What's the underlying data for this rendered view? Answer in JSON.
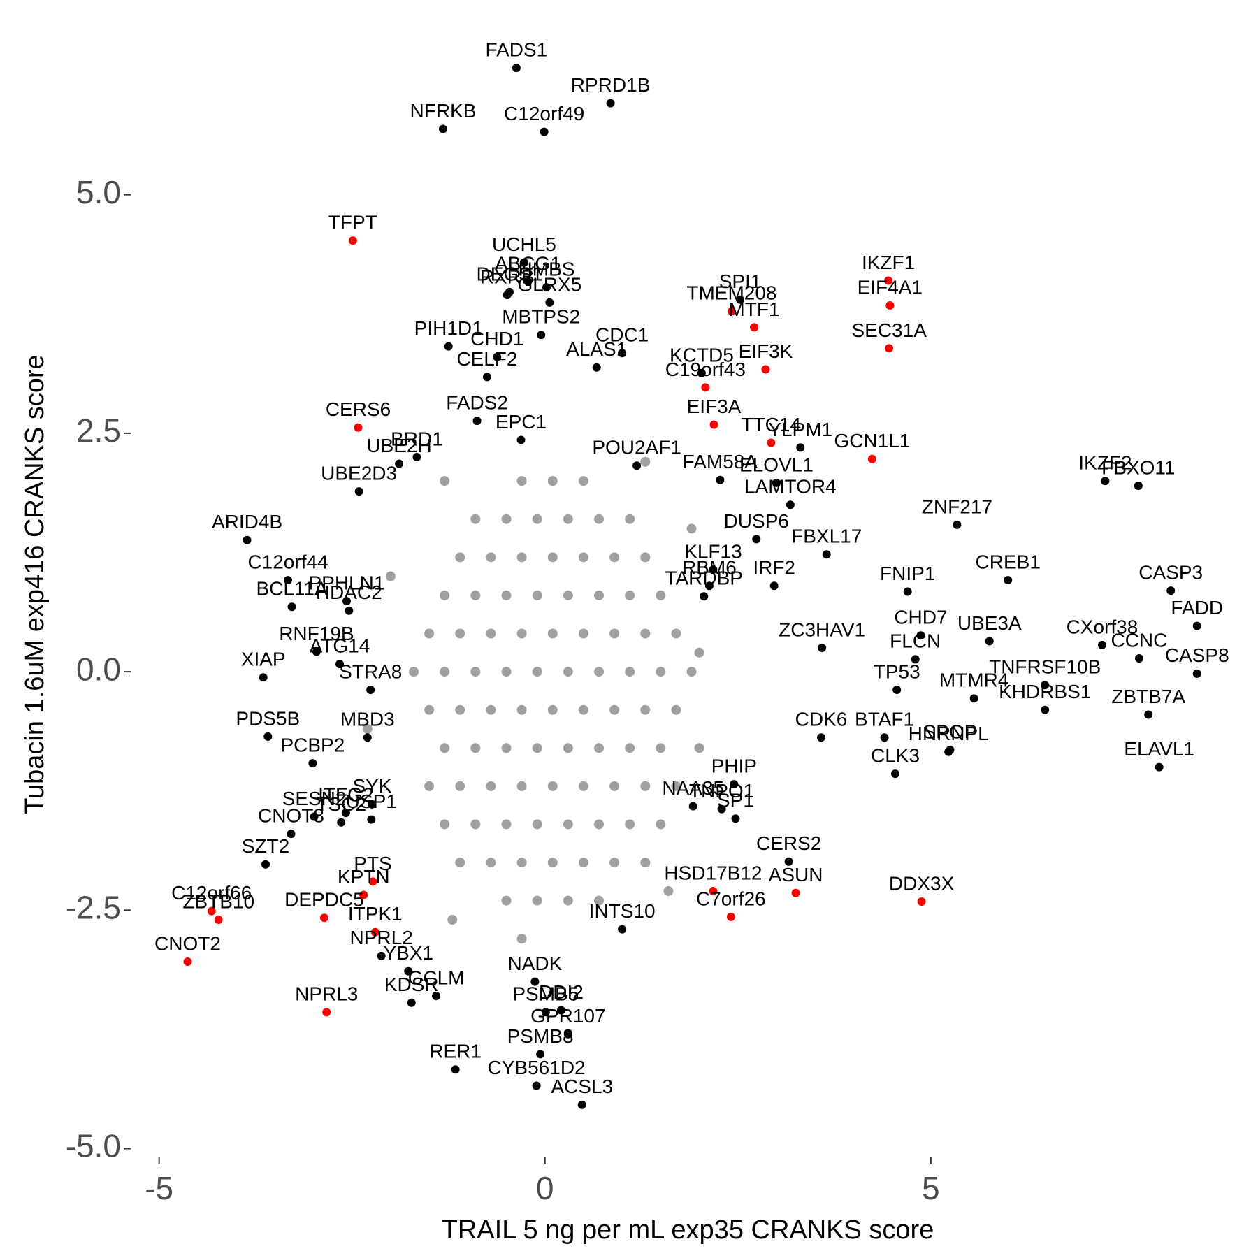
{
  "chart_data": {
    "type": "scatter",
    "xlabel": "TRAIL 5 ng per mL exp35 CRANKS score",
    "ylabel": "Tubacin 1.6uM exp416 CRANKS score",
    "xlim": [
      -5.35,
      9.05
    ],
    "ylim": [
      -5.15,
      6.8
    ],
    "xticks": [
      -5,
      0,
      5
    ],
    "yticks": [
      {
        "value": -5,
        "label": "-5.0"
      },
      {
        "value": -2.5,
        "label": "-2.5"
      },
      {
        "value": 0,
        "label": "0.0"
      },
      {
        "value": 2.5,
        "label": "2.5"
      },
      {
        "value": 5,
        "label": "5.0"
      }
    ],
    "series": [
      {
        "color": "#a0a0a0",
        "x": [
          -0.3,
          0.1,
          0.5,
          -0.9,
          -0.5,
          -0.1,
          0.3,
          0.7,
          1.1,
          -1.1,
          -0.7,
          -0.3,
          0.1,
          0.5,
          0.9,
          1.3,
          -1.3,
          -0.9,
          -0.5,
          -0.1,
          0.3,
          0.7,
          1.1,
          1.5,
          -1.5,
          -1.1,
          -0.7,
          -0.3,
          0.1,
          0.5,
          0.9,
          1.3,
          1.7,
          -1.7,
          -1.3,
          -0.9,
          -0.5,
          -0.1,
          0.3,
          0.7,
          1.1,
          1.5,
          1.9,
          -1.5,
          -1.1,
          -0.7,
          -0.3,
          0.1,
          0.5,
          0.9,
          1.3,
          1.7,
          -1.3,
          -0.9,
          -0.5,
          -0.1,
          0.3,
          0.7,
          1.1,
          1.5,
          -1.5,
          -1.1,
          -0.7,
          -0.3,
          0.1,
          0.5,
          0.9,
          1.3,
          1.7,
          -1.3,
          -0.9,
          -0.5,
          -0.1,
          0.3,
          0.7,
          1.1,
          1.5,
          -1.1,
          -0.7,
          -0.3,
          0.1,
          0.5,
          0.9,
          1.3,
          -0.5,
          -0.1,
          0.3,
          0.7,
          -2.3,
          2.0,
          1.9,
          -1.3,
          1.6,
          -1.2,
          -0.3,
          2.0,
          -2.0,
          1.3
        ],
        "y": [
          2.0,
          2.0,
          2.0,
          1.6,
          1.6,
          1.6,
          1.6,
          1.6,
          1.6,
          1.2,
          1.2,
          1.2,
          1.2,
          1.2,
          1.2,
          1.2,
          0.8,
          0.8,
          0.8,
          0.8,
          0.8,
          0.8,
          0.8,
          0.8,
          0.4,
          0.4,
          0.4,
          0.4,
          0.4,
          0.4,
          0.4,
          0.4,
          0.4,
          0.0,
          0.0,
          0.0,
          0.0,
          0.0,
          0.0,
          0.0,
          0.0,
          0.0,
          0.0,
          -0.4,
          -0.4,
          -0.4,
          -0.4,
          -0.4,
          -0.4,
          -0.4,
          -0.4,
          -0.4,
          -0.8,
          -0.8,
          -0.8,
          -0.8,
          -0.8,
          -0.8,
          -0.8,
          -0.8,
          -1.2,
          -1.2,
          -1.2,
          -1.2,
          -1.2,
          -1.2,
          -1.2,
          -1.2,
          -1.2,
          -1.6,
          -1.6,
          -1.6,
          -1.6,
          -1.6,
          -1.6,
          -1.6,
          -1.6,
          -2.0,
          -2.0,
          -2.0,
          -2.0,
          -2.0,
          -2.0,
          -2.0,
          -2.4,
          -2.4,
          -2.4,
          -2.4,
          -0.6,
          0.2,
          1.5,
          2.0,
          -2.3,
          -2.6,
          -2.8,
          -0.8,
          1.0,
          2.2
        ]
      },
      {
        "color": "#000000",
        "labels": [
          "FADS1",
          "RPRD1B",
          "NFRKB",
          "C12orf49",
          "UCHL5",
          "ABCG1",
          "DEGS1",
          "HMBS",
          "RXRB",
          "GLRX5",
          "MBTPS2",
          "CDC1",
          "PIH1D1",
          "CHD1",
          "ALAS1",
          "CELF2",
          "FADS2",
          "KCTD5",
          "SPI1",
          "EPC1",
          "BRD1",
          "UBE2H",
          "UBE2D3",
          "POU2AF1",
          "FAM58A",
          "ELOVL1",
          "YLPM1",
          "ARID4B",
          "C12orf44",
          "BCL11A",
          "PPHLN1",
          "HDAC2",
          "DUSP6",
          "LAMTOR4",
          "FBXL17",
          "ZNF217",
          "IKZF2",
          "FBXO11",
          "CREB1",
          "CASP3",
          "FNIP1",
          "CHD7",
          "UBE3A",
          "CXorf38",
          "FADD",
          "CCNC",
          "CASP8",
          "TNFRSF10B",
          "KHDRBS1",
          "ZBTB7A",
          "ELAVL1",
          "IRF2",
          "KLF13",
          "RBM6",
          "TARDBP",
          "ZC3HAV1",
          "TP53",
          "FLCN",
          "MTMR4",
          "CDK6",
          "BTAF1",
          "SPOP",
          "HNRNPL",
          "CLK3",
          "PHIP",
          "TNPO1",
          "NAA35",
          "SP1",
          "CERS2",
          "INTS10",
          "NADK",
          "DDI2",
          "PSMB5",
          "GPR107",
          "PSMB8",
          "CYB561D2",
          "ACSL3",
          "RER1",
          "KDSR",
          "GCLM",
          "YBX1",
          "NPRL2",
          "SZT2",
          "CNOT8",
          "TSC2",
          "USP1",
          "ITFG2",
          "SYK",
          "SESN2",
          "PCBP2",
          "PDS5B",
          "XIAP",
          "RNF19B",
          "ATG14",
          "STRA8",
          "MBD3"
        ],
        "x": [
          -0.37,
          0.85,
          -1.32,
          -0.01,
          -0.27,
          -0.22,
          -0.46,
          0.02,
          -0.49,
          0.06,
          -0.05,
          1.0,
          -1.25,
          -0.62,
          0.67,
          -0.75,
          -0.88,
          2.03,
          2.53,
          -0.31,
          -1.66,
          -1.89,
          -2.41,
          1.19,
          2.27,
          3.0,
          3.31,
          -3.86,
          -3.33,
          -3.28,
          -2.57,
          -2.54,
          2.74,
          3.18,
          3.65,
          5.34,
          7.26,
          7.69,
          6.0,
          8.11,
          4.7,
          4.87,
          5.76,
          7.22,
          8.45,
          7.7,
          8.45,
          6.48,
          6.48,
          7.82,
          7.96,
          2.97,
          2.18,
          2.13,
          2.06,
          3.59,
          4.56,
          4.8,
          5.56,
          3.58,
          4.4,
          5.25,
          5.23,
          4.54,
          2.45,
          2.29,
          1.92,
          2.47,
          3.16,
          1.0,
          -0.13,
          0.21,
          0.01,
          0.3,
          -0.06,
          -0.11,
          0.48,
          -1.16,
          -1.73,
          -1.41,
          -1.77,
          -2.12,
          -3.62,
          -3.29,
          -2.64,
          -2.25,
          -2.58,
          -2.24,
          -2.99,
          -3.01,
          -3.59,
          -3.65,
          -2.96,
          -2.66,
          -2.26,
          -2.3
        ],
        "y": [
          6.33,
          5.96,
          5.69,
          5.66,
          4.29,
          4.09,
          3.98,
          4.03,
          3.95,
          3.87,
          3.53,
          3.34,
          3.41,
          3.3,
          3.19,
          3.09,
          2.63,
          3.13,
          3.9,
          2.43,
          2.25,
          2.18,
          1.89,
          2.16,
          2.01,
          1.98,
          2.35,
          1.38,
          0.96,
          0.68,
          0.74,
          0.64,
          1.39,
          1.75,
          1.23,
          1.54,
          2.0,
          1.95,
          0.96,
          0.85,
          0.84,
          0.38,
          0.32,
          0.28,
          0.48,
          0.14,
          -0.02,
          -0.14,
          -0.4,
          -0.45,
          -1.0,
          0.9,
          1.07,
          0.9,
          0.79,
          0.25,
          -0.19,
          0.13,
          -0.28,
          -0.69,
          -0.69,
          -0.82,
          -0.84,
          -1.07,
          -1.18,
          -1.44,
          -1.41,
          -1.54,
          -1.99,
          -2.7,
          -3.25,
          -3.55,
          -3.57,
          -3.8,
          -4.01,
          -4.34,
          -4.54,
          -4.17,
          -3.47,
          -3.4,
          -3.14,
          -2.98,
          -2.02,
          -1.7,
          -1.58,
          -1.55,
          -1.48,
          -1.39,
          -1.52,
          -0.96,
          -0.68,
          -0.06,
          0.21,
          0.08,
          -0.19,
          -0.69
        ]
      },
      {
        "color": "#ff0000",
        "labels": [
          "TFPT",
          "CERS6",
          "TMEM208",
          "MTF1",
          "EIF3K",
          "IKZF1",
          "EIF4A1",
          "SEC31A",
          "C19orf43",
          "EIF3A",
          "TTC14",
          "GCN1L1",
          "HSD17B12",
          "C7orf26",
          "ASUN",
          "DDX3X",
          "NPRL3",
          "ITPK1",
          "PTS",
          "KPTN",
          "DEPDC5",
          "C12orf66",
          "ZBTB10",
          "CNOT2"
        ],
        "x": [
          -2.49,
          -2.42,
          2.42,
          2.71,
          2.86,
          4.45,
          4.47,
          4.46,
          2.08,
          2.19,
          2.93,
          4.24,
          2.18,
          2.41,
          3.25,
          4.88,
          -2.83,
          -2.2,
          -2.23,
          -2.35,
          -2.86,
          -4.32,
          -4.23,
          -4.63
        ],
        "y": [
          4.52,
          2.56,
          3.78,
          3.61,
          3.17,
          4.1,
          3.84,
          3.39,
          2.98,
          2.59,
          2.4,
          2.23,
          -2.3,
          -2.57,
          -2.32,
          -2.41,
          -3.57,
          -2.73,
          -2.2,
          -2.34,
          -2.58,
          -2.51,
          -2.6,
          -3.04
        ]
      }
    ]
  }
}
